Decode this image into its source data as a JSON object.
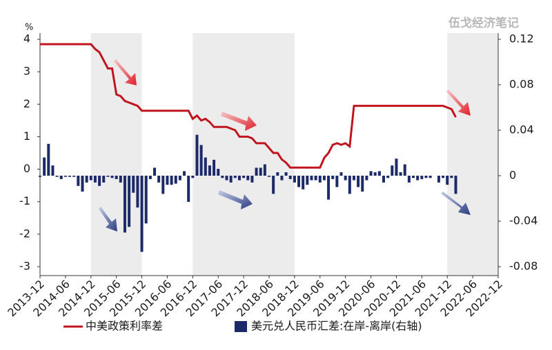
{
  "chart_data": {
    "type": "combo",
    "watermark": "伍戈经济笔记",
    "y_unit": "%",
    "x": [
      "2013-12",
      "2014-01",
      "2014-02",
      "2014-03",
      "2014-04",
      "2014-05",
      "2014-06",
      "2014-07",
      "2014-08",
      "2014-09",
      "2014-10",
      "2014-11",
      "2014-12",
      "2015-01",
      "2015-02",
      "2015-03",
      "2015-04",
      "2015-05",
      "2015-06",
      "2015-07",
      "2015-08",
      "2015-09",
      "2015-10",
      "2015-11",
      "2015-12",
      "2016-01",
      "2016-02",
      "2016-03",
      "2016-04",
      "2016-05",
      "2016-06",
      "2016-07",
      "2016-08",
      "2016-09",
      "2016-10",
      "2016-11",
      "2016-12",
      "2017-01",
      "2017-02",
      "2017-03",
      "2017-04",
      "2017-05",
      "2017-06",
      "2017-07",
      "2017-08",
      "2017-09",
      "2017-10",
      "2017-11",
      "2017-12",
      "2018-01",
      "2018-02",
      "2018-03",
      "2018-04",
      "2018-05",
      "2018-06",
      "2018-07",
      "2018-08",
      "2018-09",
      "2018-10",
      "2018-11",
      "2018-12",
      "2019-01",
      "2019-02",
      "2019-03",
      "2019-04",
      "2019-05",
      "2019-06",
      "2019-07",
      "2019-08",
      "2019-09",
      "2019-10",
      "2019-11",
      "2019-12",
      "2020-01",
      "2020-02",
      "2020-03",
      "2020-04",
      "2020-05",
      "2020-06",
      "2020-07",
      "2020-08",
      "2020-09",
      "2020-10",
      "2020-11",
      "2020-12",
      "2021-01",
      "2021-02",
      "2021-03",
      "2021-04",
      "2021-05",
      "2021-06",
      "2021-07",
      "2021-08",
      "2021-09",
      "2021-10",
      "2021-11",
      "2021-12",
      "2022-01",
      "2022-02"
    ],
    "xlim": [
      "2013-12",
      "2022-12"
    ],
    "xticks": [
      "2013-12",
      "2014-06",
      "2014-12",
      "2015-06",
      "2015-12",
      "2016-06",
      "2016-12",
      "2017-06",
      "2017-12",
      "2018-06",
      "2018-12",
      "2019-06",
      "2019-12",
      "2020-06",
      "2020-12",
      "2021-06",
      "2021-12",
      "2022-06",
      "2022-12"
    ],
    "ylim": [
      -3,
      4
    ],
    "yticks": [
      4,
      3,
      2,
      1,
      0,
      -1,
      -2,
      -3
    ],
    "y2lim": [
      -0.08,
      0.12
    ],
    "y2ticks": [
      0.12,
      0.08,
      0.04,
      0,
      -0.04,
      -0.08
    ],
    "shaded_periods": [
      [
        "2014-12",
        "2015-12"
      ],
      [
        "2016-12",
        "2018-12"
      ],
      [
        "2021-12",
        "2022-12"
      ]
    ],
    "series": [
      {
        "name": "中美政策利率差",
        "type": "line",
        "color": "#c0141e",
        "values": [
          3.85,
          3.85,
          3.85,
          3.85,
          3.85,
          3.85,
          3.85,
          3.85,
          3.85,
          3.85,
          3.85,
          3.85,
          3.85,
          3.7,
          3.6,
          3.35,
          3.1,
          3.1,
          2.3,
          2.25,
          2.1,
          2.05,
          2.0,
          1.95,
          1.8,
          1.8,
          1.8,
          1.8,
          1.8,
          1.8,
          1.8,
          1.8,
          1.8,
          1.8,
          1.8,
          1.8,
          1.55,
          1.65,
          1.5,
          1.55,
          1.45,
          1.3,
          1.3,
          1.3,
          1.3,
          1.25,
          1.2,
          1.0,
          1.0,
          1.0,
          0.95,
          0.8,
          0.8,
          0.8,
          0.65,
          0.5,
          0.5,
          0.3,
          0.2,
          0.05,
          0.05,
          0.05,
          0.05,
          0.05,
          0.05,
          0.05,
          0.05,
          0.35,
          0.5,
          0.75,
          0.8,
          0.75,
          0.8,
          0.7,
          1.95,
          1.95,
          1.95,
          1.95,
          1.95,
          1.95,
          1.95,
          1.95,
          1.95,
          1.95,
          1.95,
          1.95,
          1.95,
          1.95,
          1.95,
          1.95,
          1.95,
          1.95,
          1.95,
          1.95,
          1.95,
          1.95,
          1.9,
          1.85,
          1.6
        ]
      },
      {
        "name": "美元兑人民币汇差:在岸-离岸(右轴)",
        "type": "bar",
        "axis": "y2",
        "color": "#1c2a68",
        "values": [
          -0.001,
          0.016,
          0.028,
          0.009,
          -0.001,
          -0.003,
          -0.001,
          -0.001,
          -0.001,
          -0.009,
          -0.014,
          -0.006,
          -0.004,
          -0.006,
          -0.009,
          -0.006,
          -0.001,
          -0.002,
          -0.003,
          -0.006,
          -0.05,
          -0.045,
          -0.015,
          -0.028,
          -0.067,
          -0.042,
          -0.003,
          0.007,
          -0.006,
          -0.016,
          -0.008,
          -0.008,
          -0.007,
          -0.004,
          0.004,
          -0.023,
          -0.002,
          0.036,
          0.027,
          0.016,
          0.009,
          0.014,
          0.006,
          -0.002,
          -0.004,
          -0.006,
          -0.002,
          -0.004,
          -0.002,
          -0.004,
          -0.006,
          0.007,
          0.007,
          0.01,
          -0.001,
          -0.016,
          0.003,
          -0.004,
          0.003,
          -0.003,
          -0.006,
          -0.01,
          -0.012,
          -0.008,
          -0.004,
          -0.004,
          -0.006,
          -0.004,
          -0.021,
          -0.003,
          -0.01,
          0.003,
          -0.004,
          -0.016,
          -0.004,
          -0.01,
          -0.014,
          -0.004,
          0.004,
          0.003,
          0.004,
          -0.006,
          -0.002,
          0.009,
          0.015,
          0.003,
          0.01,
          -0.006,
          -0.002,
          -0.004,
          -0.003,
          -0.002,
          -0.002,
          0,
          -0.006,
          -0.002,
          -0.008,
          -0.002,
          -0.016
        ]
      }
    ]
  }
}
